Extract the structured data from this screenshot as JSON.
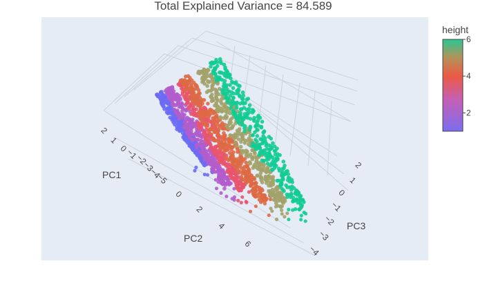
{
  "chart_data": {
    "type": "scatter3d",
    "title": "Total Explained Variance = 84.589",
    "axes": {
      "x": {
        "label": "PC1",
        "ticks": [
          "2",
          "1",
          "0",
          "−1",
          "−2",
          "−3",
          "−4",
          "−5"
        ]
      },
      "y": {
        "label": "PC2",
        "ticks": [
          "0",
          "2",
          "4",
          "6"
        ]
      },
      "z": {
        "label": "PC3",
        "ticks": [
          "2",
          "1",
          "0",
          "−1",
          "−2",
          "−3",
          "−4"
        ]
      }
    },
    "colorbar": {
      "title": "height",
      "ticks": [
        "2",
        "4",
        "6"
      ],
      "range": [
        1,
        6
      ],
      "colors": [
        "#636efa",
        "#ab63fa",
        "#ef553b",
        "#00cc96"
      ]
    },
    "groups": [
      {
        "height": 1,
        "color": "#6c6cf5"
      },
      {
        "height": 2,
        "color": "#b25dcc"
      },
      {
        "height": 3,
        "color": "#e9546e"
      },
      {
        "height": 4,
        "color": "#de6a45"
      },
      {
        "height": 5,
        "color": "#a3a26a"
      },
      {
        "height": 6,
        "color": "#12cc92"
      }
    ],
    "scene_background": "#e5ecf6",
    "grid": true
  }
}
